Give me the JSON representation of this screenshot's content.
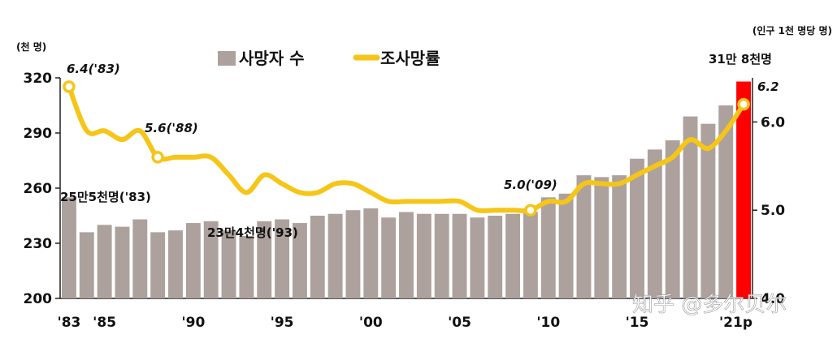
{
  "chart_data": {
    "type": "bar+line",
    "left_unit": "(천 명)",
    "right_unit": "(인구 1천 명당 명)",
    "series": [
      {
        "name": "사망자 수",
        "kind": "bar",
        "axis": "left",
        "color": "#ada19d",
        "highlight_color": "#ff0000",
        "x": [
          "'83",
          "'84",
          "'85",
          "'86",
          "'87",
          "'88",
          "'89",
          "'90",
          "'91",
          "'92",
          "'93",
          "'94",
          "'95",
          "'96",
          "'97",
          "'98",
          "'99",
          "'00",
          "'01",
          "'02",
          "'03",
          "'04",
          "'05",
          "'06",
          "'07",
          "'08",
          "'09",
          "'10",
          "'11",
          "'12",
          "'13",
          "'14",
          "'15",
          "'16",
          "'17",
          "'18",
          "'19",
          "'20",
          "'21p"
        ],
        "values": [
          255,
          236,
          240,
          239,
          243,
          236,
          237,
          241,
          242,
          237,
          234,
          242,
          243,
          241,
          245,
          246,
          248,
          249,
          244,
          247,
          246,
          246,
          246,
          244,
          245,
          246,
          247,
          255,
          257,
          267,
          266,
          267,
          276,
          281,
          286,
          299,
          295,
          305,
          318
        ]
      },
      {
        "name": "조사망률",
        "kind": "line",
        "axis": "right",
        "color": "#f5c518",
        "values": [
          6.4,
          5.9,
          5.9,
          5.8,
          5.9,
          5.6,
          5.6,
          5.6,
          5.6,
          5.4,
          5.2,
          5.4,
          5.3,
          5.2,
          5.2,
          5.3,
          5.3,
          5.2,
          5.1,
          5.1,
          5.1,
          5.1,
          5.1,
          5.0,
          5.0,
          5.0,
          5.0,
          5.1,
          5.1,
          5.3,
          5.3,
          5.3,
          5.4,
          5.5,
          5.6,
          5.8,
          5.7,
          5.9,
          6.2
        ]
      }
    ],
    "x_tick_labels": [
      "'83",
      "'85",
      "'90",
      "'95",
      "'00",
      "'05",
      "'10",
      "'15",
      "'21p"
    ],
    "y_left": {
      "ticks": [
        200,
        230,
        260,
        290,
        320
      ],
      "range": [
        200,
        320
      ]
    },
    "y_right": {
      "ticks": [
        "4.0",
        "5.0",
        "6.0"
      ],
      "range": [
        4.0,
        6.5
      ]
    },
    "annotations": {
      "bar_first": "25만5천명('83)",
      "bar_1993": "23만4천명('93)",
      "bar_last": "31만 8천명",
      "rate_1983": "6.4('83)",
      "rate_1988": "5.6('88)",
      "rate_2009": "5.0('09)",
      "rate_last": "6.2"
    },
    "watermark": "知乎 @多尔贝尔"
  }
}
